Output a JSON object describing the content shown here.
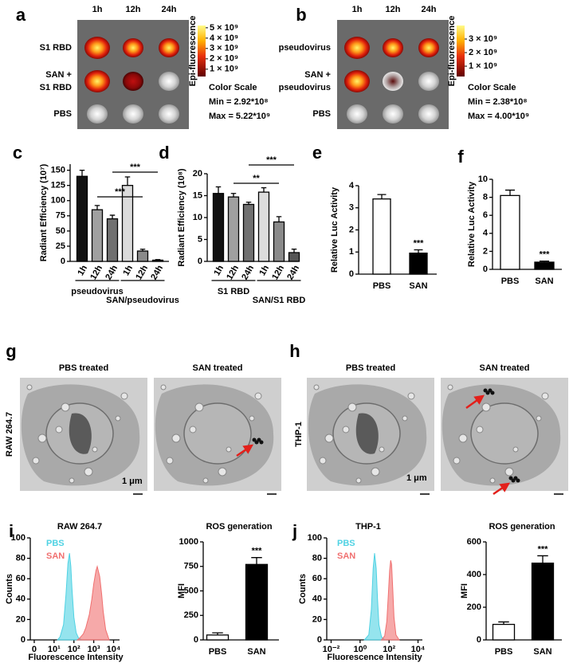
{
  "imaging": [
    {
      "panel": "a",
      "timepoints": [
        "1h",
        "12h",
        "24h"
      ],
      "rows": [
        [
          "S1 RBD"
        ],
        [
          "SAN +",
          "S1 RBD"
        ],
        [
          "PBS"
        ]
      ],
      "colorbar": {
        "label": "Epi-fluorescence",
        "lim": [
          292000000,
          5220000000
        ],
        "ticks": [
          {
            "value": 5000000000,
            "label": "5 × 10⁹"
          },
          {
            "value": 4000000000,
            "label": "4 × 10⁹"
          },
          {
            "value": 3000000000,
            "label": "3 × 10⁹"
          },
          {
            "value": 2000000000,
            "label": "2 × 10⁹"
          },
          {
            "value": 1000000000,
            "label": "1 × 10⁹"
          }
        ]
      },
      "scale_title": "Color Scale",
      "min": "Min = 2.92*10⁸",
      "max": "Max = 5.22*10⁹"
    },
    {
      "panel": "b",
      "timepoints": [
        "1h",
        "12h",
        "24h"
      ],
      "rows": [
        [
          "pseudovirus"
        ],
        [
          "SAN +",
          "pseudovirus"
        ],
        [
          "PBS"
        ]
      ],
      "colorbar": {
        "label": "Epi-fluorescence",
        "lim": [
          238000000,
          4000000000
        ],
        "ticks": [
          {
            "value": 3000000000,
            "label": "3 × 10⁹"
          },
          {
            "value": 2000000000,
            "label": "2 × 10⁹"
          },
          {
            "value": 1000000000,
            "label": "1 × 10⁹"
          }
        ]
      },
      "scale_title": "Color Scale",
      "min": "Min = 2.38*10⁸",
      "max": "Max = 4.00*10⁹"
    }
  ],
  "tem": [
    {
      "panel": "g",
      "cell_line": "RAW 264.7",
      "titles": [
        "PBS treated",
        "SAN treated"
      ],
      "scale_bar": "1 μm"
    },
    {
      "panel": "h",
      "cell_line": "THP-1",
      "titles": [
        "PBS treated",
        "SAN treated"
      ],
      "scale_bar": "1 μm"
    }
  ],
  "chart_data": [
    {
      "type": "bar",
      "panel": "c",
      "ylabel": "Radiant Efficiency (10⁷)",
      "ylim": [
        0,
        160
      ],
      "yticks": [
        0,
        25,
        50,
        75,
        100,
        125,
        150
      ],
      "groups": [
        {
          "name": "pseudovirus",
          "categories": [
            "1h",
            "12h",
            "24h"
          ],
          "values": [
            140,
            85,
            70
          ],
          "errors": [
            10,
            7,
            6
          ],
          "colors": [
            "#111111",
            "#a0a0a0",
            "#707070"
          ]
        },
        {
          "name": "SAN/pseudovirus",
          "categories": [
            "1h",
            "12h",
            "24h"
          ],
          "values": [
            125,
            17,
            2
          ],
          "errors": [
            14,
            3,
            1
          ],
          "colors": [
            "#dcdcdc",
            "#8a8a8a",
            "#555555"
          ]
        }
      ],
      "significance": [
        "***",
        "***"
      ]
    },
    {
      "type": "bar",
      "panel": "d",
      "ylabel": "Radiant Efficiency (10⁸)",
      "ylim": [
        0,
        20
      ],
      "yticks": [
        0,
        5,
        10,
        15,
        20
      ],
      "groups": [
        {
          "name": "S1 RBD",
          "categories": [
            "1h",
            "12h",
            "24h"
          ],
          "values": [
            15.5,
            14.7,
            13.0
          ],
          "errors": [
            1.5,
            0.8,
            0.5
          ],
          "colors": [
            "#111111",
            "#a0a0a0",
            "#707070"
          ]
        },
        {
          "name": "SAN/S1 RBD",
          "categories": [
            "1h",
            "12h",
            "24h"
          ],
          "values": [
            15.8,
            9.0,
            2.0
          ],
          "errors": [
            1.0,
            1.2,
            0.8
          ],
          "colors": [
            "#dcdcdc",
            "#8a8a8a",
            "#555555"
          ]
        }
      ],
      "significance": [
        "**",
        "***"
      ]
    },
    {
      "type": "bar",
      "panel": "e",
      "ylabel": "Relative Luc Activity",
      "ylim": [
        0,
        4
      ],
      "yticks": [
        0,
        1,
        2,
        3,
        4
      ],
      "categories": [
        "PBS",
        "SAN"
      ],
      "values": [
        3.4,
        0.95
      ],
      "errors": [
        0.2,
        0.15
      ],
      "colors": [
        "#ffffff",
        "#000000"
      ],
      "significance": [
        "***"
      ]
    },
    {
      "type": "bar",
      "panel": "f",
      "ylabel": "Relative Luc Activity",
      "ylim": [
        0,
        10
      ],
      "yticks": [
        0,
        2,
        4,
        6,
        8,
        10
      ],
      "categories": [
        "PBS",
        "SAN"
      ],
      "values": [
        8.2,
        0.8
      ],
      "errors": [
        0.6,
        0.12
      ],
      "colors": [
        "#ffffff",
        "#000000"
      ],
      "significance": [
        "***"
      ]
    },
    {
      "type": "area",
      "panel": "i",
      "title": "RAW 264.7",
      "xlabel": "Fluorescence Intensity",
      "ylabel": "Counts",
      "xscale": "symlog",
      "linthresh": 10,
      "xlim": [
        -2,
        20000
      ],
      "xticks": [
        0,
        {
          "value": 10,
          "label": "10¹"
        },
        {
          "value": 100,
          "label": "10²"
        },
        {
          "value": 1000,
          "label": "10³"
        },
        {
          "value": 10000,
          "label": "10⁴"
        }
      ],
      "ylim": [
        0,
        100
      ],
      "yticks": [
        0,
        20,
        40,
        60,
        80,
        100
      ],
      "series": [
        {
          "name": "PBS",
          "color": "#4fd2e3",
          "x": [
            15,
            20,
            30,
            40,
            50,
            60,
            70,
            80,
            100,
            130,
            170,
            250
          ],
          "values": [
            0,
            3,
            15,
            45,
            75,
            85,
            72,
            50,
            22,
            7,
            2,
            0
          ]
        },
        {
          "name": "SAN",
          "color": "#f07070",
          "x": [
            150,
            200,
            300,
            400,
            600,
            800,
            1000,
            1300,
            1500,
            2000,
            2500,
            3000,
            4000,
            6000
          ],
          "values": [
            0,
            2,
            6,
            12,
            25,
            40,
            55,
            68,
            72,
            62,
            45,
            28,
            10,
            0
          ]
        }
      ]
    },
    {
      "type": "bar",
      "title": "ROS generation",
      "ylabel": "MFI",
      "ylim": [
        0,
        1000
      ],
      "yticks": [
        0,
        250,
        500,
        750,
        1000
      ],
      "categories": [
        "PBS",
        "SAN"
      ],
      "values": [
        50,
        770
      ],
      "errors": [
        22,
        70
      ],
      "colors": [
        "#ffffff",
        "#000000"
      ],
      "significance": [
        "***"
      ]
    },
    {
      "type": "area",
      "panel": "j",
      "title": "THP-1",
      "xlabel": "Fluorescence Intensity",
      "ylabel": "Counts",
      "xscale": "log",
      "xlim": [
        0.005,
        20000
      ],
      "xticks": [
        {
          "value": 0.01,
          "label": "10⁻²"
        },
        {
          "value": 1,
          "label": "10⁰"
        },
        {
          "value": 100,
          "label": "10²"
        },
        {
          "value": 10000,
          "label": "10⁴"
        }
      ],
      "ylim": [
        0,
        100
      ],
      "yticks": [
        0,
        20,
        40,
        60,
        80,
        100
      ],
      "series": [
        {
          "name": "PBS",
          "color": "#4fd2e3",
          "x": [
            2,
            4,
            6,
            8,
            10,
            13,
            16,
            20,
            30,
            50
          ],
          "values": [
            0,
            5,
            30,
            70,
            85,
            70,
            40,
            15,
            3,
            0
          ]
        },
        {
          "name": "SAN",
          "color": "#f07070",
          "x": [
            30,
            50,
            70,
            90,
            110,
            130,
            150,
            180,
            220,
            300,
            500
          ],
          "values": [
            0,
            4,
            18,
            45,
            68,
            78,
            74,
            50,
            22,
            5,
            0
          ]
        }
      ]
    },
    {
      "type": "bar",
      "title": "ROS generation",
      "ylabel": "MFI",
      "ylim": [
        0,
        600
      ],
      "yticks": [
        0,
        200,
        400,
        600
      ],
      "categories": [
        "PBS",
        "SAN"
      ],
      "values": [
        95,
        470
      ],
      "errors": [
        15,
        45
      ],
      "colors": [
        "#ffffff",
        "#000000"
      ],
      "significance": [
        "***"
      ]
    }
  ]
}
